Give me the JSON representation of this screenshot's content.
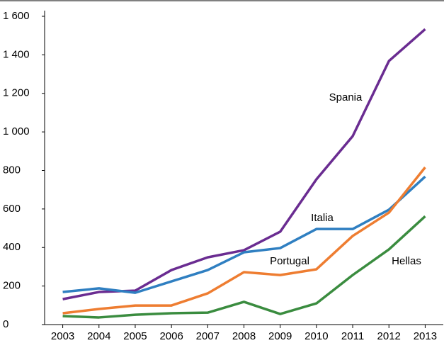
{
  "chart_data": {
    "type": "line",
    "x": [
      2003,
      2004,
      2005,
      2006,
      2007,
      2008,
      2009,
      2010,
      2011,
      2012,
      2013
    ],
    "xlim": [
      2002.5,
      2013.5
    ],
    "ylim": [
      0,
      1600
    ],
    "yticks": [
      0,
      200,
      400,
      600,
      800,
      {
        "value": 1000,
        "label": "1 000"
      },
      {
        "value": 1200,
        "label": "1 200"
      },
      {
        "value": 1400,
        "label": "1 400"
      },
      {
        "value": 1600,
        "label": "1 600"
      }
    ],
    "series": [
      {
        "name": "Spania",
        "color": "#6a2c91",
        "values": [
          132,
          169,
          176,
          283,
          349,
          386,
          482,
          754,
          978,
          1368,
          1533
        ]
      },
      {
        "name": "Italia",
        "color": "#2f7fc1",
        "values": [
          169,
          188,
          165,
          224,
          283,
          375,
          397,
          496,
          496,
          596,
          768
        ]
      },
      {
        "name": "Portugal",
        "color": "#ee7d31",
        "values": [
          59,
          81,
          99,
          99,
          162,
          272,
          257,
          287,
          460,
          581,
          816
        ]
      },
      {
        "name": "Hellas",
        "color": "#3a8c3f",
        "values": [
          44,
          37,
          51,
          59,
          62,
          118,
          55,
          110,
          257,
          390,
          562
        ]
      }
    ]
  }
}
